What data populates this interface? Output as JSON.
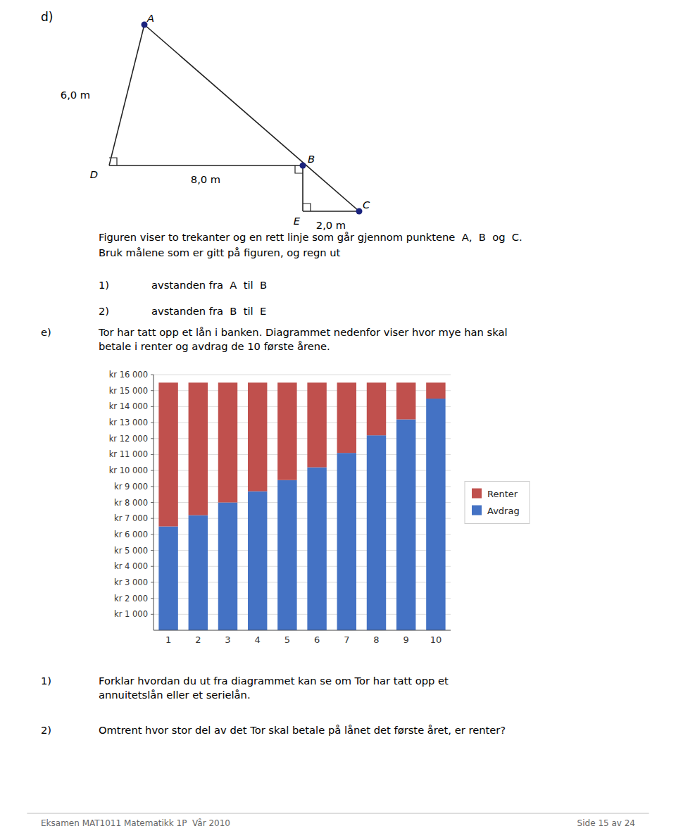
{
  "chart_data": {
    "type": "bar",
    "stacked": true,
    "grid": true,
    "legend": "right",
    "categories": [
      "1",
      "2",
      "3",
      "4",
      "5",
      "6",
      "7",
      "8",
      "9",
      "10"
    ],
    "series": [
      {
        "name": "Avdrag",
        "color": "#4472C4",
        "values": [
          6500,
          7200,
          8000,
          8700,
          9400,
          10200,
          11100,
          12200,
          13200,
          14500
        ]
      },
      {
        "name": "Renter",
        "color": "#C0504D",
        "values": [
          9000,
          8300,
          7500,
          6800,
          6100,
          5300,
          4400,
          3300,
          2300,
          1000
        ]
      }
    ],
    "ylim": [
      0,
      16000
    ],
    "yticks": [
      {
        "value": 1000,
        "label": "kr 1 000"
      },
      {
        "value": 2000,
        "label": "kr 2 000"
      },
      {
        "value": 3000,
        "label": "kr 3 000"
      },
      {
        "value": 4000,
        "label": "kr 4 000"
      },
      {
        "value": 5000,
        "label": "kr 5 000"
      },
      {
        "value": 6000,
        "label": "kr 6 000"
      },
      {
        "value": 7000,
        "label": "kr 7 000"
      },
      {
        "value": 8000,
        "label": "kr 8 000"
      },
      {
        "value": 9000,
        "label": "kr 9 000"
      },
      {
        "value": 10000,
        "label": "kr 10 000"
      },
      {
        "value": 11000,
        "label": "kr 11 000"
      },
      {
        "value": 12000,
        "label": "kr 12 000"
      },
      {
        "value": 13000,
        "label": "kr 13 000"
      },
      {
        "value": 14000,
        "label": "kr 14 000"
      },
      {
        "value": 15000,
        "label": "kr 15 000"
      },
      {
        "value": 16000,
        "label": "kr 16 000"
      }
    ],
    "annotations": [
      "d)",
      "A",
      "B",
      "C",
      "D",
      "E",
      "6,0 m",
      "8,0 m",
      "2,0 m",
      "Figuren viser to trekanter og en rett linje som går gjennom punktene  A,  B  og  C.",
      "Bruk målene som er gitt på figuren, og regn ut",
      "1)",
      "avstanden fra  A  til  B",
      "2)",
      "avstanden fra  B  til  E",
      "e)",
      "Tor har tatt opp et lån i banken. Diagrammet nedenfor viser hvor mye han skal",
      "betale i renter og avdrag de 10 første årene.",
      "1)",
      "Forklar hvordan du ut fra diagrammet kan se om Tor har tatt opp et",
      "annuitetslån eller et serielån.",
      "2)",
      "Omtrent hvor stor del av det Tor skal betale på lånet det første året, er renter?",
      "Eksamen MAT1011 Matematikk 1P  Vår 2010",
      "Side 15 av 24"
    ]
  }
}
